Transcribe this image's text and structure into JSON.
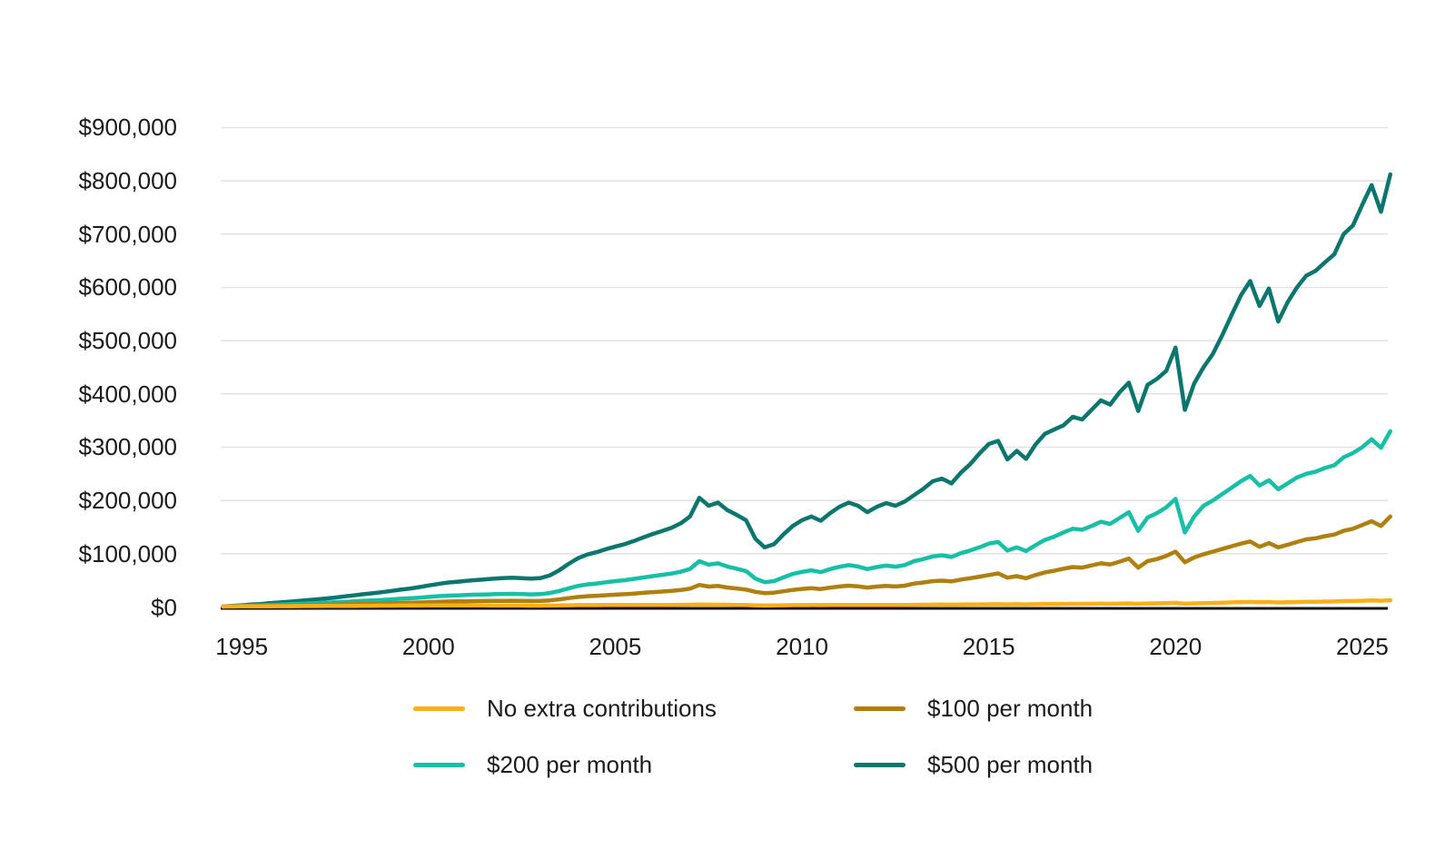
{
  "chart_data": {
    "type": "line",
    "title": "",
    "xlabel": "",
    "ylabel": "",
    "x_unit": "year",
    "values_unit": "thousand_USD",
    "grid": "horizontal",
    "legend_position": "bottom",
    "axis_color": "#111111",
    "gridline_color": "#e3e3e3",
    "xlim": [
      1994.4,
      2026.2
    ],
    "ylim": [
      0,
      950
    ],
    "x_ticks": [
      1995,
      2000,
      2005,
      2010,
      2015,
      2020,
      2025
    ],
    "x_tick_labels": [
      "1995",
      "2000",
      "2005",
      "2010",
      "2015",
      "2020",
      "2025"
    ],
    "y_ticks": [
      0,
      100,
      200,
      300,
      400,
      500,
      600,
      700,
      800,
      900
    ],
    "y_tick_labels": [
      "$0",
      "$100,000",
      "$200,000",
      "$300,000",
      "$400,000",
      "$500,000",
      "$600,000",
      "$700,000",
      "$800,000",
      "$900,000"
    ],
    "x": [
      1994.5,
      1994.75,
      1995,
      1995.25,
      1995.5,
      1995.75,
      1996,
      1996.25,
      1996.5,
      1996.75,
      1997,
      1997.25,
      1997.5,
      1997.75,
      1998,
      1998.25,
      1998.5,
      1998.75,
      1999,
      1999.25,
      1999.5,
      1999.75,
      2000,
      2000.25,
      2000.5,
      2000.75,
      2001,
      2001.25,
      2001.5,
      2001.75,
      2002,
      2002.25,
      2002.5,
      2002.75,
      2003,
      2003.25,
      2003.5,
      2003.75,
      2004,
      2004.25,
      2004.5,
      2004.75,
      2005,
      2005.25,
      2005.5,
      2005.75,
      2006,
      2006.25,
      2006.5,
      2006.75,
      2007,
      2007.25,
      2007.5,
      2007.75,
      2008,
      2008.25,
      2008.5,
      2008.75,
      2009,
      2009.25,
      2009.5,
      2009.75,
      2010,
      2010.25,
      2010.5,
      2010.75,
      2011,
      2011.25,
      2011.5,
      2011.75,
      2012,
      2012.25,
      2012.5,
      2012.75,
      2013,
      2013.25,
      2013.5,
      2013.75,
      2014,
      2014.25,
      2014.5,
      2014.75,
      2015,
      2015.25,
      2015.5,
      2015.75,
      2016,
      2016.25,
      2016.5,
      2016.75,
      2017,
      2017.25,
      2017.5,
      2017.75,
      2018,
      2018.25,
      2018.5,
      2018.75,
      2019,
      2019.25,
      2019.5,
      2019.75,
      2020,
      2020.25,
      2020.5,
      2020.75,
      2021,
      2021.25,
      2021.5,
      2021.75,
      2022,
      2022.25,
      2022.5,
      2022.75,
      2023,
      2023.25,
      2023.5,
      2023.75,
      2024,
      2024.25,
      2024.5,
      2024.75,
      2025,
      2025.25,
      2025.5,
      2025.75
    ],
    "series": [
      {
        "name": "No extra contributions",
        "color": "#FBAF18",
        "values": [
          1.0,
          1.1,
          1.2,
          1.3,
          1.3,
          1.4,
          1.5,
          1.6,
          1.7,
          1.8,
          1.9,
          2.0,
          2.1,
          2.2,
          2.3,
          2.4,
          2.4,
          2.5,
          2.6,
          2.7,
          2.7,
          2.8,
          3.0,
          3.0,
          3.1,
          3.0,
          3.0,
          2.9,
          2.9,
          2.8,
          2.8,
          2.8,
          2.7,
          2.6,
          2.6,
          2.8,
          3.0,
          3.3,
          3.5,
          3.6,
          3.6,
          3.7,
          3.7,
          3.8,
          3.8,
          3.9,
          3.9,
          4.0,
          4.0,
          4.1,
          4.2,
          4.6,
          4.4,
          4.5,
          4.2,
          4.0,
          3.8,
          3.1,
          2.8,
          2.9,
          3.2,
          3.5,
          3.6,
          3.7,
          3.5,
          3.7,
          3.9,
          4.0,
          3.9,
          3.7,
          3.8,
          3.9,
          3.8,
          3.9,
          4.1,
          4.3,
          4.5,
          4.6,
          4.5,
          4.7,
          4.9,
          5.0,
          5.1,
          5.3,
          5.0,
          5.2,
          5.0,
          5.3,
          5.5,
          5.6,
          5.8,
          6.0,
          5.9,
          6.1,
          6.3,
          6.1,
          6.4,
          6.6,
          6.1,
          6.6,
          6.8,
          7.2,
          7.8,
          6.1,
          6.9,
          7.3,
          7.7,
          8.2,
          8.7,
          9.2,
          9.6,
          8.9,
          9.4,
          8.5,
          9.0,
          9.4,
          9.8,
          9.9,
          10.2,
          10.4,
          11.0,
          11.3,
          11.8,
          12.4,
          11.7,
          12.8
        ]
      },
      {
        "name": "$100 per month",
        "color": "#AF7F0F",
        "values": [
          1.0,
          1.2,
          1.5,
          1.8,
          2.0,
          2.3,
          2.7,
          3.0,
          3.3,
          3.6,
          3.9,
          4.3,
          4.6,
          5.0,
          5.4,
          5.9,
          6.2,
          6.6,
          7.1,
          7.6,
          8.0,
          8.5,
          9.2,
          9.7,
          10.2,
          10.5,
          10.7,
          11.0,
          11.2,
          11.4,
          11.6,
          11.7,
          11.4,
          11.2,
          11.4,
          12.4,
          14.3,
          16.7,
          18.8,
          20.2,
          21.1,
          22.2,
          23.2,
          24.1,
          25.3,
          26.6,
          27.9,
          29.0,
          30.2,
          31.9,
          34.5,
          41.5,
          38.4,
          39.6,
          36.7,
          34.8,
          32.7,
          28.5,
          26.0,
          27.0,
          29.5,
          32.0,
          34.0,
          35.3,
          33.8,
          36.3,
          38.5,
          40.0,
          38.8,
          36.5,
          38.3,
          39.6,
          38.6,
          40.1,
          44.0,
          46.0,
          48.5,
          49.5,
          48.0,
          51.5,
          54.0,
          57.0,
          60.0,
          63.0,
          55.0,
          58.0,
          54.0,
          60.0,
          65.0,
          68.0,
          72.0,
          75.0,
          74.0,
          78.0,
          82.0,
          80.0,
          85.0,
          91.0,
          74.0,
          86.0,
          90.0,
          96.0,
          104.0,
          84.0,
          93.0,
          99.0,
          104.0,
          109.0,
          114.0,
          119.0,
          123.0,
          113.0,
          120.0,
          112.0,
          117.0,
          122.0,
          127.0,
          129.0,
          133.0,
          136.0,
          143.0,
          147.0,
          154.0,
          161.0,
          152.0,
          170.0
        ]
      },
      {
        "name": "$200 per month",
        "color": "#16BFA6",
        "values": [
          1.0,
          1.5,
          2.1,
          2.7,
          3.2,
          3.9,
          4.6,
          5.2,
          5.9,
          6.6,
          7.3,
          8.1,
          8.9,
          9.8,
          10.7,
          11.7,
          12.4,
          13.3,
          14.4,
          15.5,
          16.4,
          17.6,
          19.0,
          20.2,
          21.3,
          21.9,
          22.5,
          23.1,
          23.6,
          24.1,
          24.5,
          24.7,
          24.2,
          23.7,
          24.2,
          26.3,
          30.2,
          35.1,
          39.5,
          42.4,
          44.2,
          46.5,
          48.5,
          50.3,
          52.8,
          55.4,
          58.0,
          60.3,
          62.7,
          66.2,
          71.5,
          86.0,
          79.5,
          82.0,
          76.0,
          72.0,
          67.5,
          53.5,
          46.5,
          48.5,
          55.5,
          62.0,
          66.0,
          68.8,
          65.5,
          71.0,
          75.5,
          78.6,
          76.0,
          71.2,
          75.0,
          77.7,
          75.6,
          78.7,
          86.0,
          90.0,
          95.0,
          97.0,
          94.0,
          101.0,
          106.0,
          112.0,
          119.0,
          122.0,
          106.0,
          112.0,
          105.0,
          116.0,
          126.0,
          132.0,
          140.0,
          147.0,
          145.0,
          152.0,
          160.0,
          156.0,
          167.0,
          178.0,
          143.0,
          168.0,
          176.0,
          187.0,
          203.0,
          140.0,
          170.0,
          190.0,
          200.0,
          212.0,
          224.0,
          236.0,
          246.0,
          228.0,
          238.0,
          221.0,
          232.0,
          243.0,
          250.0,
          254.0,
          261.0,
          266.0,
          281.0,
          289.0,
          300.0,
          315.0,
          299.0,
          330.0
        ]
      },
      {
        "name": "$500 per month",
        "color": "#0A766E",
        "values": [
          1.0,
          2.2,
          3.3,
          4.6,
          5.7,
          7.1,
          8.5,
          9.8,
          11.2,
          12.8,
          14.3,
          16.1,
          17.8,
          19.9,
          21.8,
          24.1,
          25.7,
          27.8,
          30.2,
          32.6,
          34.6,
          37.3,
          40.4,
          43.2,
          45.8,
          47.3,
          48.9,
          50.4,
          51.9,
          53.3,
          54.4,
          55.1,
          54.2,
          53.1,
          54.3,
          59.5,
          69.0,
          81.0,
          91.5,
          98.5,
          103.0,
          108.5,
          113.5,
          118.0,
          124.0,
          130.5,
          137.0,
          142.5,
          148.5,
          157.0,
          170.0,
          205.0,
          190.0,
          196.0,
          182.0,
          173.0,
          163.0,
          128.0,
          112.0,
          118.0,
          136.0,
          152.0,
          163.0,
          170.0,
          162.0,
          176.0,
          188.0,
          196.0,
          190.0,
          178.0,
          188.0,
          195.0,
          190.0,
          198.0,
          210.0,
          222.0,
          236.0,
          241.0,
          232.0,
          252.0,
          268.0,
          288.0,
          306.0,
          312.0,
          277.0,
          293.0,
          278.0,
          305.0,
          325.0,
          333.0,
          341.0,
          357.0,
          352.0,
          370.0,
          388.0,
          380.0,
          403.0,
          421.0,
          368.0,
          417.0,
          428.0,
          443.0,
          487.0,
          370.0,
          420.0,
          450.0,
          475.0,
          510.0,
          548.0,
          585.0,
          612.0,
          565.0,
          598.0,
          536.0,
          572.0,
          600.0,
          622.0,
          631.0,
          647.0,
          662.0,
          700.0,
          716.0,
          755.0,
          792.0,
          742.0,
          812.0
        ]
      }
    ]
  }
}
